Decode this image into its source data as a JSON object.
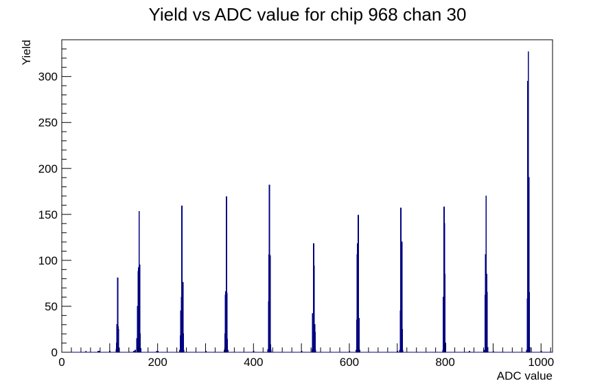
{
  "chart_data": {
    "type": "histogram",
    "title": "Yield vs ADC value for chip 968 chan 30",
    "xlabel": "ADC value",
    "ylabel": "Yield",
    "xlim": [
      0,
      1024
    ],
    "ylim": [
      0,
      340
    ],
    "x_ticks": [
      0,
      200,
      400,
      600,
      800,
      1000
    ],
    "y_ticks": [
      0,
      50,
      100,
      150,
      200,
      250,
      300
    ],
    "grid": false,
    "legend": "none",
    "line_color": "#000080",
    "series": [
      {
        "bins": [
          [
            50,
            1
          ],
          [
            75,
            1
          ],
          [
            76,
            1
          ],
          [
            78,
            1
          ],
          [
            100,
            1
          ],
          [
            113,
            3
          ],
          [
            114,
            10
          ],
          [
            115,
            30
          ],
          [
            116,
            81
          ],
          [
            117,
            28
          ],
          [
            118,
            25
          ],
          [
            119,
            4
          ],
          [
            150,
            1
          ],
          [
            153,
            2
          ],
          [
            156,
            15
          ],
          [
            158,
            50
          ],
          [
            159,
            88
          ],
          [
            160,
            92
          ],
          [
            161,
            153
          ],
          [
            162,
            95
          ],
          [
            163,
            20
          ],
          [
            164,
            4
          ],
          [
            198,
            1
          ],
          [
            200,
            1
          ],
          [
            246,
            2
          ],
          [
            247,
            18
          ],
          [
            248,
            45
          ],
          [
            249,
            60
          ],
          [
            250,
            159
          ],
          [
            251,
            65
          ],
          [
            252,
            76
          ],
          [
            253,
            20
          ],
          [
            254,
            2
          ],
          [
            300,
            1
          ],
          [
            339,
            2
          ],
          [
            340,
            20
          ],
          [
            341,
            62
          ],
          [
            342,
            66
          ],
          [
            343,
            169
          ],
          [
            344,
            64
          ],
          [
            345,
            14
          ],
          [
            346,
            2
          ],
          [
            400,
            1
          ],
          [
            430,
            3
          ],
          [
            431,
            55
          ],
          [
            432,
            106
          ],
          [
            433,
            182
          ],
          [
            434,
            105
          ],
          [
            435,
            8
          ],
          [
            436,
            2
          ],
          [
            500,
            1
          ],
          [
            522,
            3
          ],
          [
            523,
            42
          ],
          [
            524,
            24
          ],
          [
            525,
            118
          ],
          [
            526,
            94
          ],
          [
            527,
            30
          ],
          [
            528,
            22
          ],
          [
            529,
            2
          ],
          [
            600,
            1
          ],
          [
            614,
            2
          ],
          [
            615,
            35
          ],
          [
            616,
            106
          ],
          [
            617,
            118
          ],
          [
            618,
            149
          ],
          [
            619,
            35
          ],
          [
            620,
            37
          ],
          [
            621,
            2
          ],
          [
            700,
            1
          ],
          [
            705,
            2
          ],
          [
            706,
            45
          ],
          [
            707,
            157
          ],
          [
            708,
            110
          ],
          [
            709,
            120
          ],
          [
            710,
            25
          ],
          [
            711,
            2
          ],
          [
            795,
            2
          ],
          [
            796,
            60
          ],
          [
            797,
            158
          ],
          [
            798,
            140
          ],
          [
            799,
            85
          ],
          [
            800,
            10
          ],
          [
            850,
            1
          ],
          [
            882,
            2
          ],
          [
            883,
            62
          ],
          [
            884,
            106
          ],
          [
            885,
            170
          ],
          [
            886,
            85
          ],
          [
            887,
            65
          ],
          [
            888,
            5
          ],
          [
            900,
            1
          ],
          [
            970,
            2
          ],
          [
            971,
            58
          ],
          [
            972,
            295
          ],
          [
            973,
            327
          ],
          [
            974,
            190
          ],
          [
            975,
            65
          ],
          [
            976,
            5
          ],
          [
            1000,
            1
          ]
        ]
      }
    ]
  }
}
